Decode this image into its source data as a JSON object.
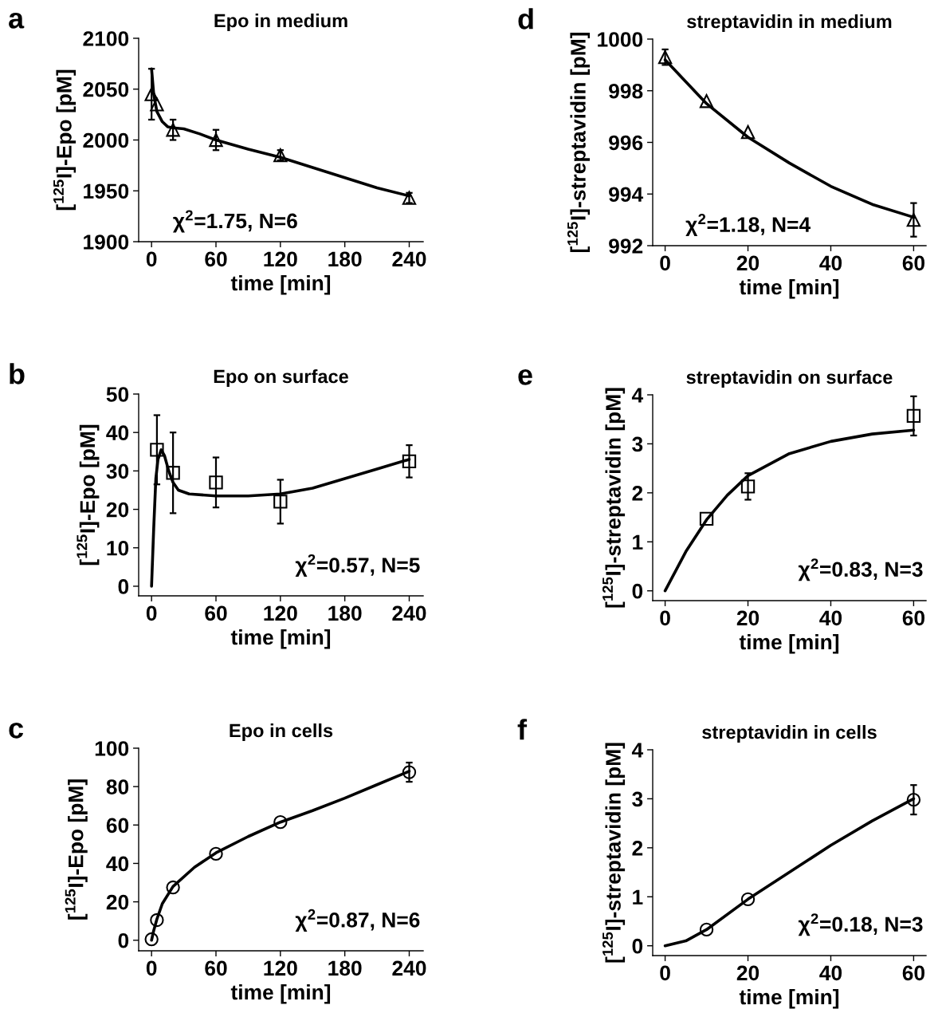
{
  "chart_data": [
    {
      "type": "scatter",
      "title": "Epo in medium",
      "xlabel": "time [min]",
      "ylabel": "[$^{125}$I]-Epo [pM]",
      "xlim": [
        -12,
        253
      ],
      "ylim": [
        1900,
        2100
      ],
      "xticks": [
        0,
        60,
        120,
        180,
        240
      ],
      "yticks": [
        1900,
        1950,
        2000,
        2050,
        2100
      ],
      "grid": false,
      "legend": false,
      "annotations": [
        "a",
        "χ$^{2}$=1.75, N=6"
      ],
      "series": [
        {
          "marker": "triangle",
          "color": "#000000",
          "x": [
            0,
            5,
            20,
            60,
            120,
            240
          ],
          "values": [
            2045,
            2035,
            2010,
            2000,
            1985,
            1943
          ],
          "errors": [
            25,
            null,
            10,
            10,
            5,
            5
          ]
        },
        {
          "type": "line",
          "marker": "none",
          "color": "#000000",
          "x": [
            0,
            2,
            5,
            10,
            15,
            20,
            30,
            45,
            60,
            90,
            120,
            150,
            180,
            210,
            240
          ],
          "values": [
            2070,
            2045,
            2028,
            2018,
            2013,
            2012,
            2011,
            2006,
            2000,
            1991,
            1983,
            1973,
            1963,
            1953,
            1945
          ]
        }
      ]
    },
    {
      "type": "scatter",
      "title": "Epo on surface",
      "xlabel": "time [min]",
      "ylabel": "[$^{125}$I]-Epo [pM]",
      "xlim": [
        -12,
        253
      ],
      "ylim": [
        -2.5,
        50
      ],
      "xticks": [
        0,
        60,
        120,
        180,
        240
      ],
      "yticks": [
        0,
        10,
        20,
        30,
        40,
        50
      ],
      "grid": false,
      "legend": false,
      "annotations": [
        "b",
        "χ$^{2}$=0.57, N=5"
      ],
      "series": [
        {
          "marker": "square",
          "color": "#000000",
          "x": [
            5,
            20,
            60,
            120,
            240
          ],
          "values": [
            35.5,
            29.5,
            27,
            22,
            32.5
          ],
          "errors": [
            9,
            10.5,
            6.5,
            5.7,
            4.2
          ]
        },
        {
          "type": "line",
          "marker": "none",
          "color": "#000000",
          "x": [
            0,
            2,
            4,
            6,
            9,
            12,
            16,
            20,
            25,
            35,
            60,
            90,
            120,
            150,
            180,
            210,
            240
          ],
          "values": [
            0,
            15,
            28,
            33,
            35.5,
            34,
            30,
            27,
            25,
            24,
            23.5,
            23.5,
            24,
            25.5,
            28,
            30.5,
            33
          ]
        }
      ]
    },
    {
      "type": "scatter",
      "title": "Epo in cells",
      "xlabel": "time [min]",
      "ylabel": "[$^{125}$I]-Epo [pM]",
      "xlim": [
        -12,
        253
      ],
      "ylim": [
        -5.5,
        100
      ],
      "xticks": [
        0,
        60,
        120,
        180,
        240
      ],
      "yticks": [
        0,
        20,
        40,
        60,
        80,
        100
      ],
      "grid": false,
      "legend": false,
      "annotations": [
        "c",
        "χ$^{2}$=0.87, N=6"
      ],
      "series": [
        {
          "marker": "circle",
          "color": "#000000",
          "x": [
            0,
            5,
            20,
            60,
            120,
            240
          ],
          "values": [
            0.5,
            10.5,
            27.5,
            45,
            61.5,
            87.5
          ],
          "errors": [
            null,
            null,
            null,
            null,
            null,
            5
          ]
        },
        {
          "type": "line",
          "marker": "none",
          "color": "#000000",
          "x": [
            0,
            2,
            5,
            10,
            20,
            40,
            60,
            90,
            120,
            150,
            180,
            210,
            240
          ],
          "values": [
            0,
            5,
            11,
            19,
            28,
            38,
            45.5,
            54,
            61.5,
            67.5,
            74,
            81,
            88
          ]
        }
      ]
    },
    {
      "type": "scatter",
      "title": "streptavidin in medium",
      "xlabel": "time [min]",
      "ylabel": "[$^{125}$I]-streptavidin [pM]",
      "xlim": [
        -3,
        63
      ],
      "ylim": [
        992,
        1000
      ],
      "xticks": [
        0,
        20,
        40,
        60
      ],
      "yticks": [
        992,
        994,
        996,
        998,
        1000
      ],
      "grid": false,
      "legend": false,
      "annotations": [
        "d",
        "χ$^{2}$=1.18, N=4"
      ],
      "series": [
        {
          "marker": "triangle",
          "color": "#000000",
          "x": [
            0,
            10,
            20,
            60
          ],
          "values": [
            999.3,
            997.6,
            996.4,
            993.0
          ],
          "errors": [
            0.3,
            null,
            null,
            0.65
          ]
        },
        {
          "type": "line",
          "marker": "none",
          "color": "#000000",
          "x": [
            0,
            10,
            20,
            30,
            40,
            50,
            60
          ],
          "values": [
            999.2,
            997.5,
            996.2,
            995.2,
            994.3,
            993.6,
            993.1
          ]
        }
      ]
    },
    {
      "type": "scatter",
      "title": "streptavidin on surface",
      "xlabel": "time [min]",
      "ylabel": "[$^{125}$I]-streptavidin [pM]",
      "xlim": [
        -3,
        63
      ],
      "ylim": [
        -0.2,
        4
      ],
      "xticks": [
        0,
        20,
        40,
        60
      ],
      "yticks": [
        0,
        1,
        2,
        3,
        4
      ],
      "grid": false,
      "legend": false,
      "annotations": [
        "e",
        "χ$^{2}$=0.83, N=3"
      ],
      "series": [
        {
          "marker": "square",
          "color": "#000000",
          "x": [
            10,
            20,
            60
          ],
          "values": [
            1.47,
            2.13,
            3.57
          ],
          "errors": [
            null,
            0.27,
            0.4
          ]
        },
        {
          "type": "line",
          "marker": "none",
          "color": "#000000",
          "x": [
            0,
            5,
            10,
            15,
            20,
            30,
            40,
            50,
            60
          ],
          "values": [
            0,
            0.8,
            1.45,
            1.95,
            2.35,
            2.8,
            3.05,
            3.2,
            3.28
          ]
        }
      ]
    },
    {
      "type": "scatter",
      "title": "streptavidin in cells",
      "xlabel": "time [min]",
      "ylabel": "[$^{125}$I]-streptavidin [pM]",
      "xlim": [
        -3,
        63
      ],
      "ylim": [
        -0.2,
        4
      ],
      "xticks": [
        0,
        20,
        40,
        60
      ],
      "yticks": [
        0,
        1,
        2,
        3,
        4
      ],
      "grid": false,
      "legend": false,
      "annotations": [
        "f",
        "χ$^{2}$=0.18, N=3"
      ],
      "series": [
        {
          "marker": "circle",
          "color": "#000000",
          "x": [
            10,
            20,
            60
          ],
          "values": [
            0.33,
            0.95,
            2.98
          ],
          "errors": [
            null,
            null,
            0.3
          ]
        },
        {
          "type": "line",
          "marker": "none",
          "color": "#000000",
          "x": [
            0,
            5,
            10,
            20,
            30,
            40,
            50,
            60
          ],
          "values": [
            0,
            0.1,
            0.33,
            0.95,
            1.5,
            2.05,
            2.55,
            3.0
          ]
        }
      ]
    }
  ]
}
